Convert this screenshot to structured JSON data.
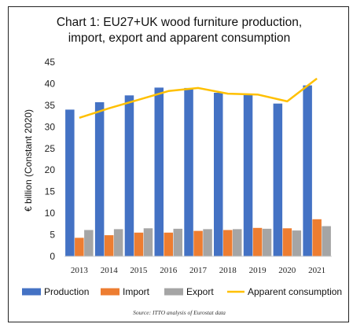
{
  "chart_data": {
    "type": "bar",
    "title": "Chart 1: EU27+UK wood furniture production, import, export and apparent consumption",
    "title_lines": [
      "Chart 1: EU27+UK wood furniture production,",
      "import, export and apparent consumption"
    ],
    "xlabel": "",
    "ylabel": "€ billion (Constant 2020)",
    "ylim": [
      0,
      45
    ],
    "yticks": [
      0,
      5,
      10,
      15,
      20,
      25,
      30,
      35,
      40,
      45
    ],
    "categories": [
      "2013",
      "2014",
      "2015",
      "2016",
      "2017",
      "2018",
      "2019",
      "2020",
      "2021"
    ],
    "series": [
      {
        "name": "Production",
        "kind": "bar",
        "color": "#4472C4",
        "values": [
          34.0,
          35.7,
          37.3,
          39.1,
          39.0,
          37.9,
          37.7,
          35.4,
          39.6
        ]
      },
      {
        "name": "Import",
        "kind": "bar",
        "color": "#ED7D31",
        "values": [
          4.3,
          4.9,
          5.5,
          5.5,
          5.9,
          6.1,
          6.6,
          6.5,
          8.6
        ]
      },
      {
        "name": "Export",
        "kind": "bar",
        "color": "#A5A5A5",
        "values": [
          6.1,
          6.3,
          6.5,
          6.4,
          6.3,
          6.3,
          6.4,
          6.0,
          7.0
        ]
      },
      {
        "name": "Apparent consumption",
        "kind": "line",
        "color": "#FFC000",
        "values": [
          32.1,
          34.3,
          36.3,
          38.3,
          39.0,
          37.7,
          37.5,
          35.9,
          41.2
        ]
      }
    ],
    "legend_position": "bottom",
    "grid": false,
    "source": "Source: ITTO analysis of Eurostat data"
  }
}
